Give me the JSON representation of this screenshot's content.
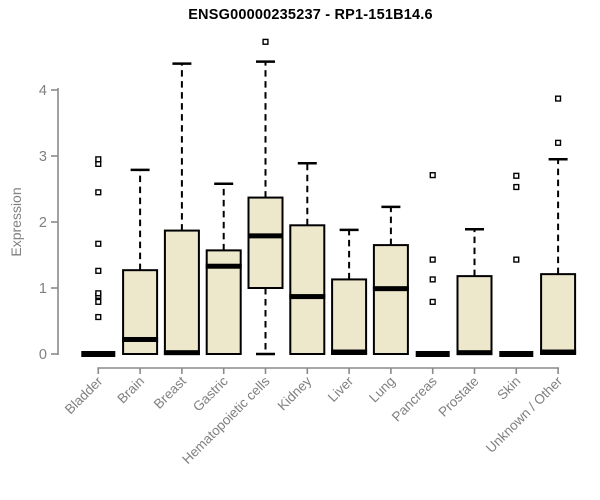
{
  "chart_data": {
    "type": "boxplot",
    "title": "ENSG00000235237 - RP1-151B14.6",
    "ylabel": "Expression",
    "xlabel": "",
    "ylim": [
      0,
      4.8
    ],
    "yticks": [
      0,
      1,
      2,
      3,
      4
    ],
    "grid": false,
    "legend": "none",
    "categories": [
      "Bladder",
      "Brain",
      "Breast",
      "Gastric",
      "Hematopoietic cells",
      "Kidney",
      "Liver",
      "Lung",
      "Pancreas",
      "Prostate",
      "Skin",
      "Unknown / Other"
    ],
    "boxes": [
      {
        "category": "Bladder",
        "low": 0,
        "q1": 0,
        "median": 0,
        "q3": 0,
        "high": 0,
        "outliers": [
          0.56,
          0.79,
          0.88,
          0.92,
          1.26,
          1.67,
          2.45,
          2.88,
          2.95
        ]
      },
      {
        "category": "Brain",
        "low": 0,
        "q1": 0,
        "median": 0.22,
        "q3": 1.27,
        "high": 2.79,
        "outliers": []
      },
      {
        "category": "Breast",
        "low": 0,
        "q1": 0,
        "median": 0.02,
        "q3": 1.87,
        "high": 4.4,
        "outliers": []
      },
      {
        "category": "Gastric",
        "low": 0,
        "q1": 0,
        "median": 1.33,
        "q3": 1.57,
        "high": 2.58,
        "outliers": []
      },
      {
        "category": "Hematopoietic cells",
        "low": 0,
        "q1": 1.0,
        "median": 1.79,
        "q3": 2.37,
        "high": 4.43,
        "outliers": [
          4.73
        ]
      },
      {
        "category": "Kidney",
        "low": 0,
        "q1": 0,
        "median": 0.87,
        "q3": 1.95,
        "high": 2.89,
        "outliers": []
      },
      {
        "category": "Liver",
        "low": 0,
        "q1": 0,
        "median": 0.03,
        "q3": 1.13,
        "high": 1.88,
        "outliers": []
      },
      {
        "category": "Lung",
        "low": 0,
        "q1": 0,
        "median": 0.99,
        "q3": 1.65,
        "high": 2.23,
        "outliers": []
      },
      {
        "category": "Pancreas",
        "low": 0,
        "q1": 0,
        "median": 0,
        "q3": 0,
        "high": 0,
        "outliers": [
          0.79,
          1.13,
          1.43,
          2.71
        ]
      },
      {
        "category": "Prostate",
        "low": 0,
        "q1": 0,
        "median": 0.02,
        "q3": 1.18,
        "high": 1.89,
        "outliers": []
      },
      {
        "category": "Skin",
        "low": 0,
        "q1": 0,
        "median": 0,
        "q3": 0,
        "high": 0,
        "outliers": [
          1.43,
          2.53,
          2.7
        ]
      },
      {
        "category": "Unknown / Other",
        "low": 0,
        "q1": 0,
        "median": 0.03,
        "q3": 1.21,
        "high": 2.95,
        "outliers": [
          3.2,
          3.87
        ]
      }
    ],
    "colors": {
      "box_fill": "#EDE8CC",
      "box_border": "#000000",
      "median": "#000000",
      "whisker": "#000000",
      "outlier_fill": "#ffffff",
      "outlier_border": "#000000",
      "axis": "#8a8a8a",
      "tick_label": "#808080",
      "title": "#000000",
      "background": "#ffffff"
    }
  }
}
